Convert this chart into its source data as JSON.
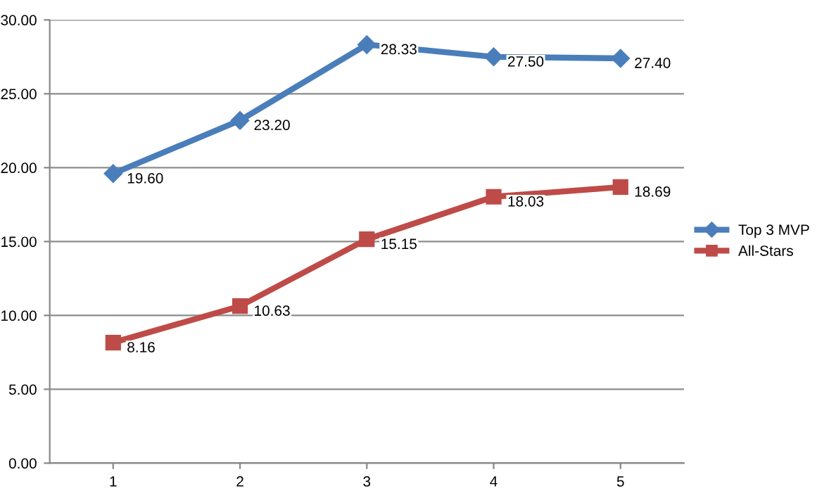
{
  "chart_data": {
    "type": "line",
    "categories": [
      "1",
      "2",
      "3",
      "4",
      "5"
    ],
    "series": [
      {
        "name": "Top 3 MVP",
        "color": "#4a7ebb",
        "marker": "diamond",
        "values": [
          19.6,
          23.2,
          28.33,
          27.5,
          27.4
        ],
        "value_labels": [
          "19.60",
          "23.20",
          "28.33",
          "27.50",
          "27.40"
        ]
      },
      {
        "name": "All-Stars",
        "color": "#be4b48",
        "marker": "square",
        "values": [
          8.16,
          10.63,
          15.15,
          18.03,
          18.69
        ],
        "value_labels": [
          "8.16",
          "10.63",
          "15.15",
          "18.03",
          "18.69"
        ]
      }
    ],
    "ylim": [
      0,
      30
    ],
    "yticks": [
      {
        "value": 0,
        "label": "0.00"
      },
      {
        "value": 5,
        "label": "5.00"
      },
      {
        "value": 10,
        "label": "10.00"
      },
      {
        "value": 15,
        "label": "15.00"
      },
      {
        "value": 20,
        "label": "20.00"
      },
      {
        "value": 25,
        "label": "25.00"
      },
      {
        "value": 30,
        "label": "30.00"
      }
    ],
    "grid": "y",
    "legend": "right",
    "line_style": "solid"
  }
}
